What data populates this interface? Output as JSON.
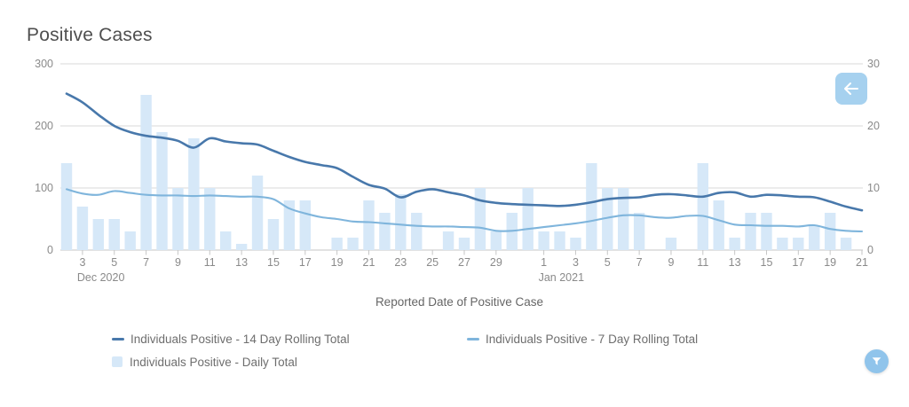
{
  "page": {
    "title": "Positive Cases"
  },
  "controls": {
    "back_button": {
      "icon": "arrow-left-icon",
      "color": "#a6d1ef"
    },
    "filter_button": {
      "icon": "funnel-icon",
      "color": "#90c4eb"
    }
  },
  "chart_data": {
    "type": "bar+line combo",
    "title": "Positive Cases",
    "xlabel": "Reported Date of Positive Case",
    "grid": "horizontal",
    "left_axis": {
      "ticks": [
        0,
        100,
        200,
        300
      ],
      "range": [
        0,
        300
      ]
    },
    "right_axis": {
      "ticks": [
        0,
        10,
        20,
        30
      ],
      "range": [
        0,
        30
      ]
    },
    "x": [
      "Dec 2",
      "Dec 3",
      "Dec 4",
      "Dec 5",
      "Dec 6",
      "Dec 7",
      "Dec 8",
      "Dec 9",
      "Dec 10",
      "Dec 11",
      "Dec 12",
      "Dec 13",
      "Dec 14",
      "Dec 15",
      "Dec 16",
      "Dec 17",
      "Dec 18",
      "Dec 19",
      "Dec 20",
      "Dec 21",
      "Dec 22",
      "Dec 23",
      "Dec 24",
      "Dec 25",
      "Dec 26",
      "Dec 27",
      "Dec 28",
      "Dec 29",
      "Dec 30",
      "Dec 31",
      "Jan 1",
      "Jan 2",
      "Jan 3",
      "Jan 4",
      "Jan 5",
      "Jan 6",
      "Jan 7",
      "Jan 8",
      "Jan 9",
      "Jan 10",
      "Jan 11",
      "Jan 12",
      "Jan 13",
      "Jan 14",
      "Jan 15",
      "Jan 16",
      "Jan 17",
      "Jan 18",
      "Jan 19",
      "Jan 20",
      "Jan 21"
    ],
    "x_tick_labels": [
      {
        "index": 1,
        "label": "3"
      },
      {
        "index": 3,
        "label": "5"
      },
      {
        "index": 5,
        "label": "7"
      },
      {
        "index": 7,
        "label": "9"
      },
      {
        "index": 9,
        "label": "11"
      },
      {
        "index": 11,
        "label": "13"
      },
      {
        "index": 13,
        "label": "15"
      },
      {
        "index": 15,
        "label": "17"
      },
      {
        "index": 17,
        "label": "19"
      },
      {
        "index": 19,
        "label": "21"
      },
      {
        "index": 21,
        "label": "23"
      },
      {
        "index": 23,
        "label": "25"
      },
      {
        "index": 25,
        "label": "27"
      },
      {
        "index": 27,
        "label": "29"
      },
      {
        "index": 30,
        "label": "1"
      },
      {
        "index": 32,
        "label": "3"
      },
      {
        "index": 34,
        "label": "5"
      },
      {
        "index": 36,
        "label": "7"
      },
      {
        "index": 38,
        "label": "9"
      },
      {
        "index": 40,
        "label": "11"
      },
      {
        "index": 42,
        "label": "13"
      },
      {
        "index": 44,
        "label": "15"
      },
      {
        "index": 46,
        "label": "17"
      },
      {
        "index": 48,
        "label": "19"
      },
      {
        "index": 50,
        "label": "21"
      }
    ],
    "month_labels": [
      {
        "index": 1,
        "label": "Dec 2020"
      },
      {
        "index": 30,
        "label": "Jan 2021"
      }
    ],
    "series": [
      {
        "name": "Individuals Positive - 14 Day Rolling Total",
        "type": "line",
        "axis": "left",
        "color": "#4878ab",
        "values": [
          252,
          238,
          218,
          200,
          190,
          184,
          181,
          176,
          165,
          180,
          175,
          172,
          170,
          160,
          150,
          142,
          137,
          132,
          118,
          105,
          99,
          85,
          94,
          98,
          93,
          88,
          80,
          76,
          74,
          73,
          72,
          71,
          73,
          77,
          82,
          84,
          85,
          89,
          90,
          88,
          86,
          92,
          93,
          86,
          89,
          88,
          86,
          85,
          78,
          70,
          64
        ]
      },
      {
        "name": "Individuals Positive - 7 Day Rolling Total",
        "type": "line",
        "axis": "left",
        "color": "#7fb5dc",
        "values": [
          98,
          91,
          89,
          95,
          92,
          89,
          88,
          88,
          87,
          88,
          87,
          86,
          86,
          82,
          67,
          59,
          53,
          50,
          46,
          45,
          43,
          41,
          39,
          38,
          38,
          37,
          36,
          31,
          31,
          34,
          37,
          40,
          43,
          47,
          52,
          56,
          56,
          53,
          52,
          55,
          55,
          48,
          41,
          40,
          39,
          39,
          38,
          40,
          34,
          31,
          30
        ]
      },
      {
        "name": "Individuals Positive - Daily Total",
        "type": "bar",
        "axis": "right",
        "color": "#d6e8f8",
        "values": [
          14,
          7,
          5,
          5,
          3,
          25,
          19,
          10,
          18,
          10,
          3,
          1,
          12,
          5,
          8,
          8,
          0,
          2,
          2,
          8,
          6,
          9,
          6,
          0,
          3,
          2,
          10,
          3,
          6,
          10,
          3,
          3,
          2,
          14,
          10,
          10,
          6,
          0,
          2,
          0,
          14,
          8,
          2,
          6,
          6,
          2,
          2,
          4,
          6,
          2,
          0
        ]
      }
    ],
    "legend_position": "bottom-left",
    "colors": {
      "gridline": "#d8d8d8",
      "axis_line": "#c6c6c6",
      "tick_label": "#8a8a8a"
    }
  },
  "legend": {
    "items": [
      {
        "label": "Individuals Positive - 14 Day Rolling Total",
        "swatch": "line-dash",
        "color": "#4878ab"
      },
      {
        "label": "Individuals Positive - 7 Day Rolling Total",
        "swatch": "line-dash",
        "color": "#7fb5dc"
      },
      {
        "label": "Individuals Positive - Daily Total",
        "swatch": "square",
        "color": "#d6e8f8"
      }
    ]
  }
}
